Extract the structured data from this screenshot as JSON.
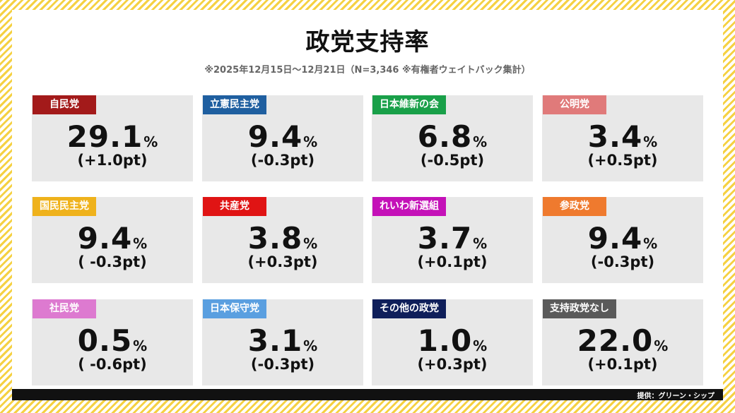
{
  "title": "政党支持率",
  "subtitle": "※2025年12月15日～12月21日（N=3,346 ※有権者ウェイトバック集計）",
  "footer": "提供：グリーン・シップ",
  "parties": [
    {
      "name": "自民党",
      "value": "29.1",
      "unit": "%",
      "change": "(+1.0pt)",
      "color": "#a31a1a"
    },
    {
      "name": "立憲民主党",
      "value": "9.4",
      "unit": "%",
      "change": "(-0.3pt)",
      "color": "#1f5fa0"
    },
    {
      "name": "日本維新の会",
      "value": "6.8",
      "unit": "%",
      "change": "(-0.5pt)",
      "color": "#19a049"
    },
    {
      "name": "公明党",
      "value": "3.4",
      "unit": "%",
      "change": "(+0.5pt)",
      "color": "#e07a7a"
    },
    {
      "name": "国民民主党",
      "value": "9.4",
      "unit": "%",
      "change": "( -0.3pt)",
      "color": "#efb21c"
    },
    {
      "name": "共産党",
      "value": "3.8",
      "unit": "%",
      "change": "(+0.3pt)",
      "color": "#e01414"
    },
    {
      "name": "れいわ新選組",
      "value": "3.7",
      "unit": "%",
      "change": "(+0.1pt)",
      "color": "#c411b8"
    },
    {
      "name": "参政党",
      "value": "9.4",
      "unit": "%",
      "change": "(-0.3pt)",
      "color": "#ef7a2e"
    },
    {
      "name": "社民党",
      "value": "0.5",
      "unit": "%",
      "change": "( -0.6pt)",
      "color": "#dd7ad0"
    },
    {
      "name": "日本保守党",
      "value": "3.1",
      "unit": "%",
      "change": "(-0.3pt)",
      "color": "#5a9fe0"
    },
    {
      "name": "その他の政党",
      "value": "1.0",
      "unit": "%",
      "change": "(+0.3pt)",
      "color": "#0f1f5a"
    },
    {
      "name": "支持政党なし",
      "value": "22.0",
      "unit": "%",
      "change": "(+0.1pt)",
      "color": "#5a5a5a"
    }
  ]
}
